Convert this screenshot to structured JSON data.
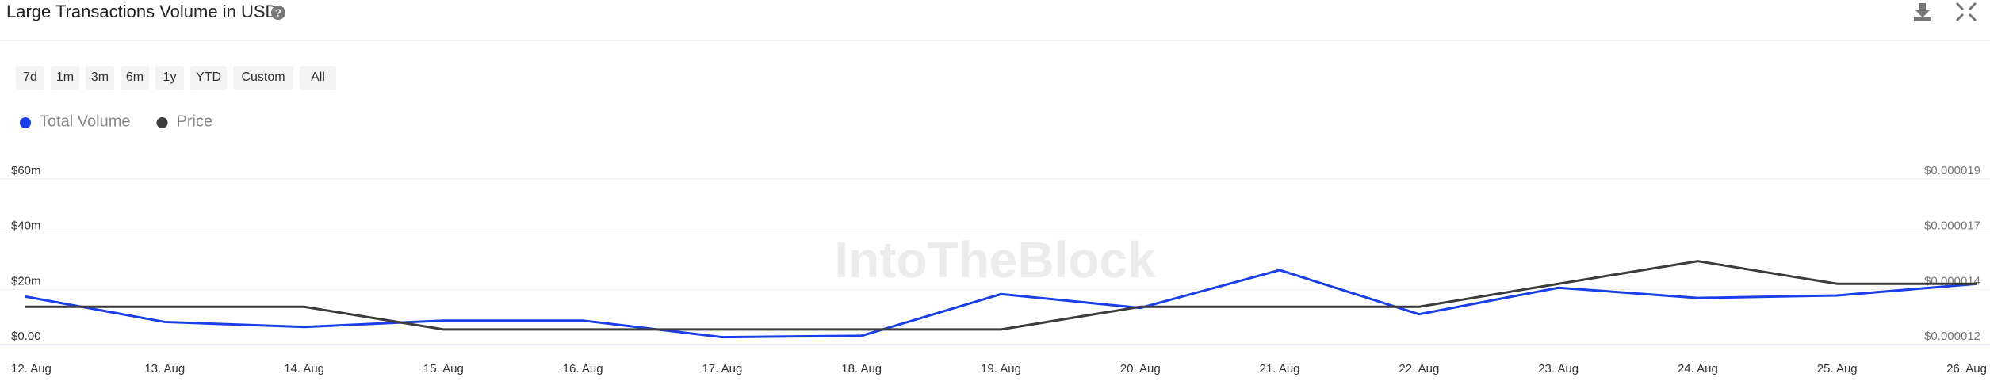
{
  "range_buttons": [
    "7d",
    "1m",
    "3m",
    "6m",
    "1y",
    "YTD",
    "Custom",
    "All"
  ],
  "watermark": "IntoTheBlock",
  "chart_data": {
    "type": "line",
    "title": "Large Transactions Volume in USD",
    "categories": [
      "12. Aug",
      "13. Aug",
      "14. Aug",
      "15. Aug",
      "16. Aug",
      "17. Aug",
      "18. Aug",
      "19. Aug",
      "20. Aug",
      "21. Aug",
      "22. Aug",
      "23. Aug",
      "24. Aug",
      "25. Aug",
      "26. Aug"
    ],
    "series": [
      {
        "name": "Total Volume",
        "color": "#1a3ee8",
        "values": [
          17.4,
          8.2,
          6.4,
          8.7,
          8.7,
          2.7,
          3.2,
          18.3,
          13.3,
          27,
          11,
          20.6,
          16.9,
          17.8,
          22
        ]
      },
      {
        "name": "Price",
        "color": "#3c3c3c",
        "axis": "y2",
        "values": [
          1.36e-05,
          1.36e-05,
          1.36e-05,
          1.264e-05,
          1.264e-05,
          1.264e-05,
          1.264e-05,
          1.264e-05,
          1.36e-05,
          1.36e-05,
          1.36e-05,
          1.457e-05,
          1.553e-05,
          1.457e-05,
          1.457e-05
        ]
      }
    ],
    "ylim": [
      0,
      60
    ],
    "yticks": [
      {
        "value": 0,
        "label": "$0.00"
      },
      {
        "value": 20,
        "label": "$20m"
      },
      {
        "value": 40,
        "label": "$40m"
      },
      {
        "value": 60,
        "label": "$60m"
      }
    ],
    "y2lim": [
      1.2e-05,
      1.9e-05
    ],
    "y2ticks": [
      {
        "value": 1.2e-05,
        "label": "$0.000012"
      },
      {
        "value": 1.433e-05,
        "label": "$0.000014"
      },
      {
        "value": 1.667e-05,
        "label": "$0.000017"
      },
      {
        "value": 1.9e-05,
        "label": "$0.000019"
      }
    ],
    "grid": true
  }
}
